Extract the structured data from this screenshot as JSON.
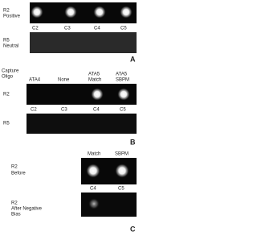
{
  "panel_a": {
    "rows": [
      {
        "lines": [
          "R2",
          "Positive"
        ]
      },
      {
        "lines": [
          "R5",
          "Neutral"
        ]
      }
    ],
    "columns": [
      "C2",
      "C3",
      "C4",
      "C5"
    ],
    "letter": "A"
  },
  "panel_b": {
    "header_label": [
      "Capture",
      "Oligo"
    ],
    "headers": [
      [
        "ATA4"
      ],
      [
        "None"
      ],
      [
        "ATA5",
        "Match"
      ],
      [
        "ATA5",
        "SBPM"
      ]
    ],
    "rows": [
      {
        "lines": [
          "R2"
        ]
      },
      {
        "lines": [
          "R5"
        ]
      }
    ],
    "columns": [
      "C2",
      "C3",
      "C4",
      "C5"
    ],
    "letter": "B"
  },
  "panel_c": {
    "headers": [
      "Match",
      "SBPM"
    ],
    "rows": [
      {
        "lines": [
          "R2",
          "Before"
        ]
      },
      {
        "lines": [
          "R2",
          "After Negative",
          "Bias"
        ]
      }
    ],
    "columns": [
      "C4",
      "C5"
    ],
    "letter": "C"
  }
}
